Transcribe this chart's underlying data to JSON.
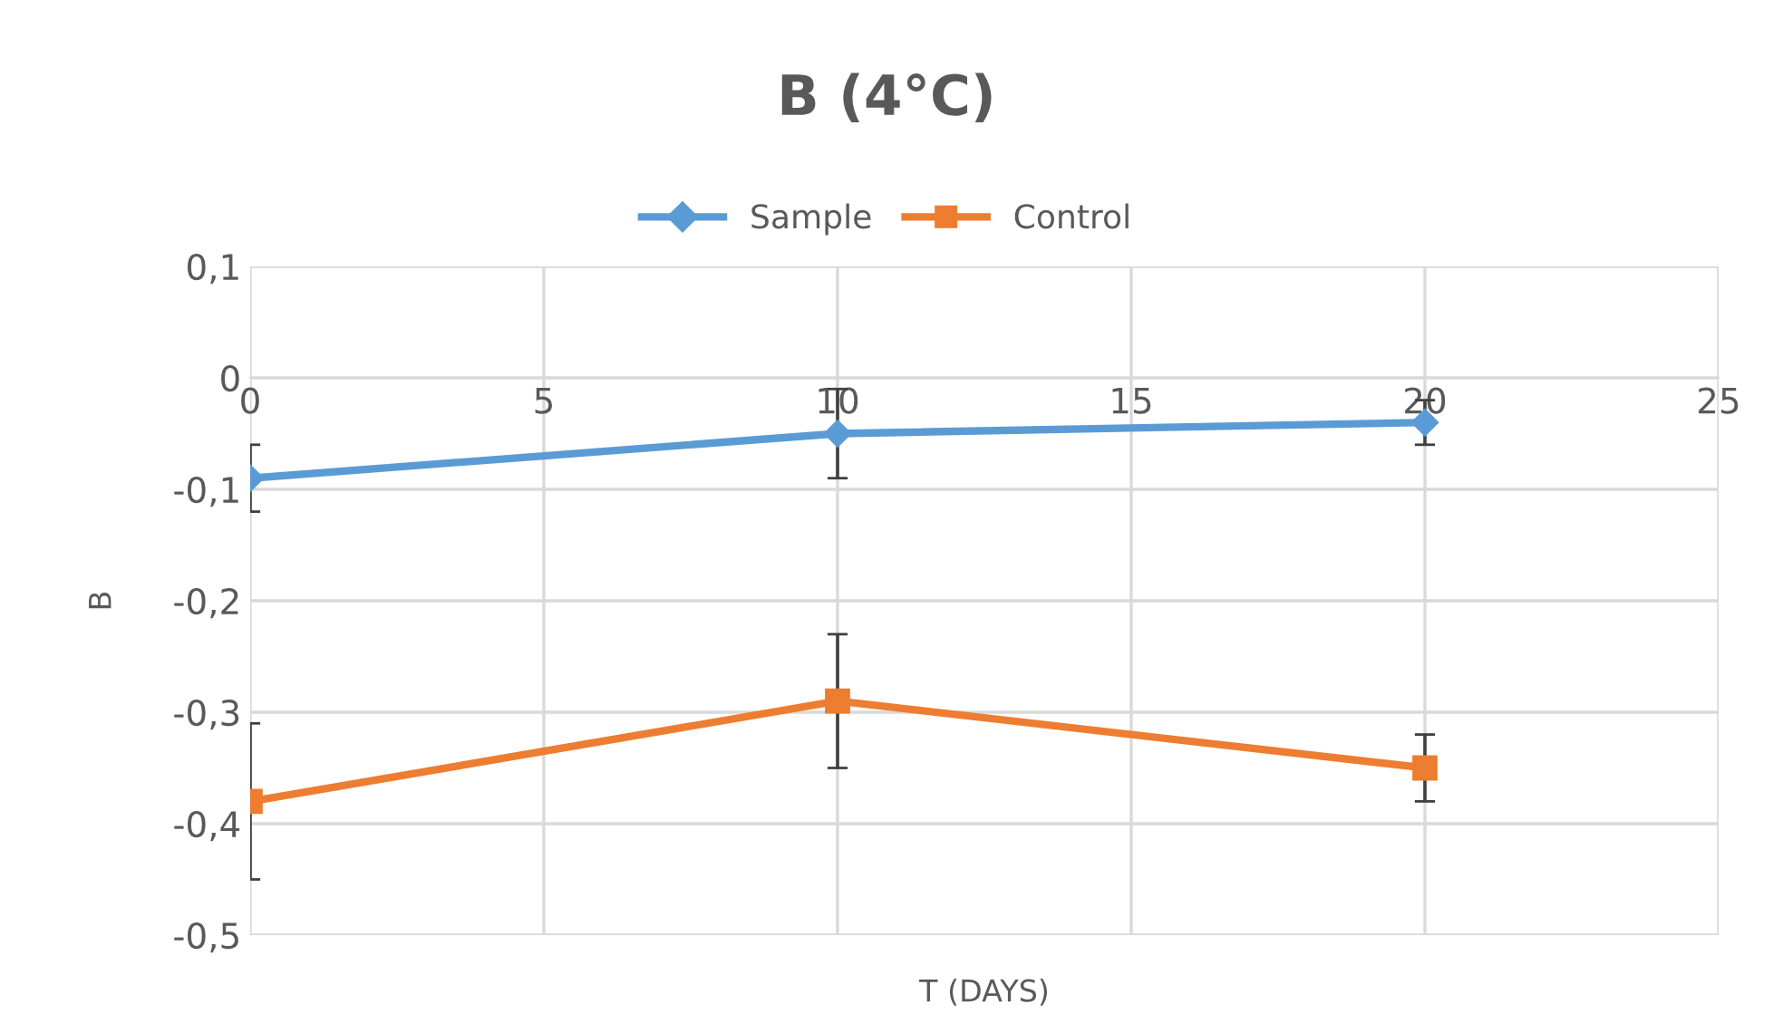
{
  "chart_data": {
    "type": "line",
    "title": "B (4°C)",
    "xlabel": "T (DAYS)",
    "ylabel": "B",
    "xlim": [
      0,
      25
    ],
    "xticks": [
      0,
      5,
      10,
      15,
      20,
      25
    ],
    "ylim": [
      -0.5,
      0.1
    ],
    "yticks": [
      {
        "value": 0.1,
        "label": "0,1"
      },
      0,
      {
        "value": -0.1,
        "label": "-0,1"
      },
      {
        "value": -0.2,
        "label": "-0,2"
      },
      {
        "value": -0.3,
        "label": "-0,3"
      },
      {
        "value": -0.4,
        "label": "-0,4"
      },
      {
        "value": -0.5,
        "label": "-0,5"
      }
    ],
    "grid": true,
    "legend": "top",
    "series": [
      {
        "name": "Sample",
        "color": "#5b9bd5",
        "marker": "diamond",
        "x": [
          0,
          10,
          20
        ],
        "values": [
          -0.09,
          -0.05,
          -0.04
        ],
        "errors": [
          0.03,
          0.04,
          0.02
        ]
      },
      {
        "name": "Control",
        "color": "#ed7d31",
        "marker": "square",
        "x": [
          0,
          10,
          20
        ],
        "values": [
          -0.38,
          -0.29,
          -0.35
        ],
        "errors": [
          0.07,
          0.06,
          0.03
        ]
      }
    ]
  }
}
